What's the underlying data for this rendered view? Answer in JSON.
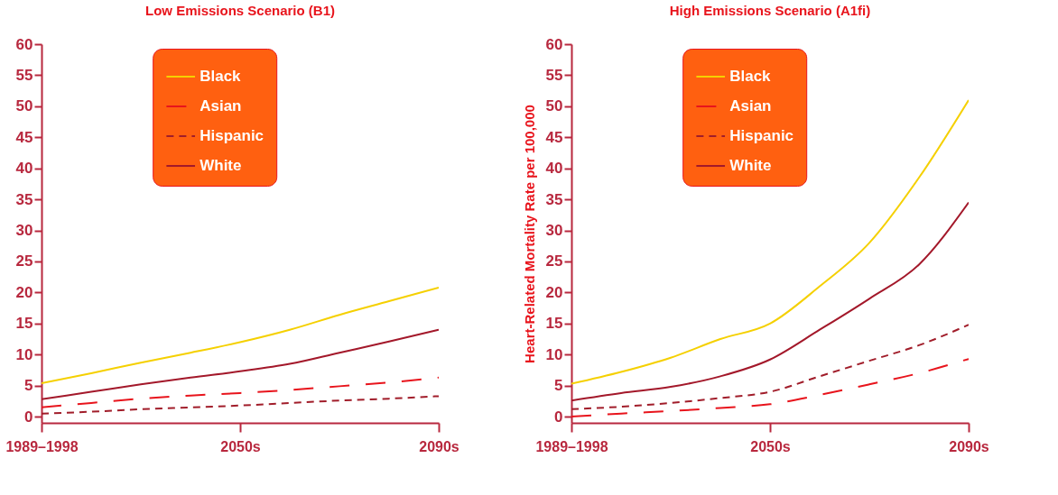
{
  "chart_data": [
    {
      "type": "line",
      "title": "Low Emissions Scenario (B1)",
      "legend": "top",
      "grid": false,
      "marker": "none",
      "categories": [
        "1989–1998",
        null,
        null,
        null,
        "2050s",
        null,
        null,
        null,
        "2090s"
      ],
      "ylim": [
        -1,
        60
      ],
      "yticks": [
        0,
        5,
        10,
        15,
        20,
        25,
        30,
        35,
        40,
        45,
        50,
        55,
        60
      ],
      "series": [
        {
          "name": "Black",
          "color": "#f5d000",
          "line_style": "solid",
          "values": [
            5.4,
            7.0,
            8.7,
            10.3,
            12.0,
            14.0,
            16.4,
            18.6,
            20.8
          ]
        },
        {
          "name": "Asian",
          "color": "#e8141c",
          "line_style": "dashed",
          "values": [
            1.5,
            2.2,
            2.9,
            3.4,
            3.8,
            4.3,
            4.9,
            5.5,
            6.3
          ]
        },
        {
          "name": "Hispanic",
          "color": "#a11d2a",
          "line_style": "dotted",
          "values": [
            0.5,
            0.8,
            1.2,
            1.5,
            1.8,
            2.2,
            2.6,
            2.9,
            3.3
          ]
        },
        {
          "name": "White",
          "color": "#a3182a",
          "line_style": "solid",
          "values": [
            2.8,
            4.0,
            5.2,
            6.3,
            7.3,
            8.5,
            10.3,
            12.1,
            14.0
          ]
        }
      ]
    },
    {
      "type": "line",
      "title": "High Emissions Scenario (A1fi)",
      "ylabel": "Heart-Related Mortality Rate per 100,000",
      "legend": "top",
      "grid": false,
      "marker": "none",
      "categories": [
        "1989–1998",
        null,
        null,
        null,
        "2050s",
        null,
        null,
        null,
        "2090s"
      ],
      "ylim": [
        -1,
        60
      ],
      "yticks": [
        0,
        5,
        10,
        15,
        20,
        25,
        30,
        35,
        40,
        45,
        50,
        55,
        60
      ],
      "series": [
        {
          "name": "Black",
          "color": "#f5d000",
          "line_style": "solid",
          "values": [
            5.3,
            7.2,
            9.5,
            12.5,
            15.0,
            21.0,
            28.0,
            38.5,
            51.0
          ]
        },
        {
          "name": "Asian",
          "color": "#e8141c",
          "line_style": "dashed",
          "values": [
            0.0,
            0.5,
            0.9,
            1.4,
            2.0,
            3.5,
            5.2,
            7.0,
            9.3
          ]
        },
        {
          "name": "Hispanic",
          "color": "#a11d2a",
          "line_style": "dotted",
          "values": [
            1.2,
            1.6,
            2.2,
            3.0,
            4.0,
            6.5,
            9.0,
            11.5,
            14.8
          ]
        },
        {
          "name": "White",
          "color": "#a3182a",
          "line_style": "solid",
          "values": [
            2.6,
            3.8,
            4.8,
            6.5,
            9.2,
            14.0,
            19.0,
            24.5,
            34.5
          ]
        }
      ]
    }
  ]
}
